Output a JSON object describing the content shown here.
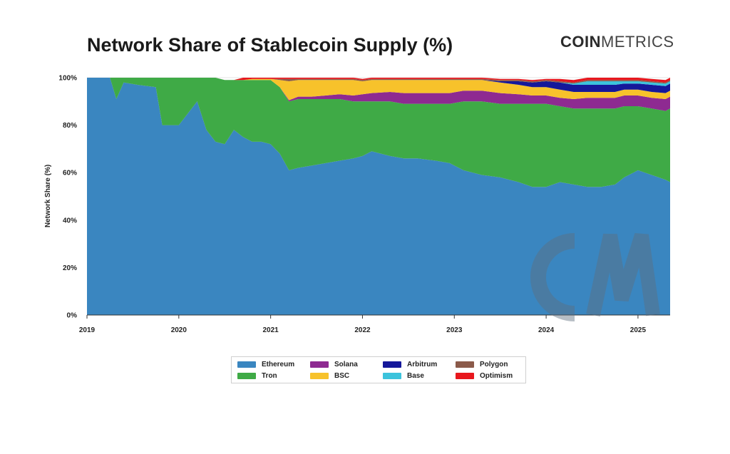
{
  "header": {
    "title": "Network Share of Stablecoin Supply (%)",
    "brand_bold": "COIN",
    "brand_light": "METRICS"
  },
  "chart_data": {
    "type": "area",
    "stacked": true,
    "title": "Network Share of Stablecoin Supply (%)",
    "xlabel": "",
    "ylabel": "Network Share (%)",
    "ylim": [
      0,
      100
    ],
    "xlim": [
      2019.0,
      2025.35
    ],
    "y_ticks": [
      "0%",
      "20%",
      "40%",
      "60%",
      "80%",
      "100%"
    ],
    "x_ticks": [
      "2019",
      "2020",
      "2021",
      "2022",
      "2023",
      "2024",
      "2025"
    ],
    "grid": true,
    "legend_position": "bottom",
    "x": [
      2019.0,
      2019.25,
      2019.32,
      2019.4,
      2019.55,
      2019.75,
      2019.82,
      2020.0,
      2020.1,
      2020.2,
      2020.3,
      2020.4,
      2020.5,
      2020.6,
      2020.7,
      2020.8,
      2020.9,
      2021.0,
      2021.1,
      2021.2,
      2021.3,
      2021.45,
      2021.6,
      2021.75,
      2021.9,
      2022.0,
      2022.1,
      2022.3,
      2022.45,
      2022.6,
      2022.8,
      2022.95,
      2023.1,
      2023.3,
      2023.5,
      2023.7,
      2023.85,
      2024.0,
      2024.15,
      2024.3,
      2024.45,
      2024.6,
      2024.75,
      2024.85,
      2025.0,
      2025.15,
      2025.3,
      2025.35
    ],
    "series": [
      {
        "name": "Ethereum",
        "color": "#3a86c0",
        "values": [
          100,
          100,
          91,
          98,
          97,
          96,
          80,
          80,
          85,
          90,
          78,
          73,
          72,
          78,
          75,
          73,
          73,
          72,
          68,
          61,
          62,
          63,
          64,
          65,
          66,
          67,
          69,
          67,
          66,
          66,
          65,
          64,
          61,
          59,
          58,
          56,
          54,
          54,
          56,
          55,
          54,
          54,
          55,
          58,
          61,
          59,
          57,
          56
        ]
      },
      {
        "name": "Tron",
        "color": "#3faa46",
        "values": [
          0,
          0,
          9,
          2,
          3,
          4,
          20,
          20,
          15,
          10,
          22,
          27,
          27,
          21,
          24,
          26,
          26,
          27,
          28,
          29,
          29,
          28,
          27,
          26,
          24,
          23,
          21,
          23,
          23,
          23,
          24,
          25,
          29,
          31,
          31,
          33,
          35,
          35,
          32,
          32,
          33,
          33,
          32,
          30,
          27,
          28,
          29,
          31
        ]
      },
      {
        "name": "Solana",
        "color": "#8e2a91",
        "values": [
          0,
          0,
          0,
          0,
          0,
          0,
          0,
          0,
          0,
          0,
          0,
          0,
          0,
          0,
          0,
          0,
          0,
          0,
          0,
          0.5,
          1,
          1,
          1.5,
          2,
          2.5,
          3,
          3.5,
          4,
          4.5,
          4.5,
          4.5,
          4.5,
          4.5,
          4.5,
          4.5,
          4,
          3.5,
          3.5,
          3.5,
          4,
          4.5,
          4.5,
          4.5,
          4.5,
          4.5,
          4.5,
          5,
          5
        ]
      },
      {
        "name": "BSC",
        "color": "#f7c22b",
        "values": [
          0,
          0,
          0,
          0,
          0,
          0,
          0,
          0,
          0,
          0,
          0,
          0,
          0,
          0,
          0,
          0.5,
          0.5,
          0.5,
          3,
          8,
          7,
          7,
          6.5,
          6,
          6.5,
          5.5,
          5.5,
          5,
          5.5,
          5.5,
          5.5,
          5.5,
          4.5,
          4.5,
          4.5,
          4,
          3.5,
          3.5,
          3.5,
          3,
          2.5,
          2.5,
          2.5,
          2.5,
          2.5,
          2.5,
          2.5,
          2.5
        ]
      },
      {
        "name": "Arbitrum",
        "color": "#15189a",
        "values": [
          0,
          0,
          0,
          0,
          0,
          0,
          0,
          0,
          0,
          0,
          0,
          0,
          0,
          0,
          0,
          0,
          0,
          0,
          0,
          0,
          0,
          0,
          0,
          0,
          0,
          0,
          0,
          0,
          0,
          0,
          0,
          0,
          0,
          0,
          0.5,
          1.5,
          2,
          2.5,
          3,
          3,
          3,
          3,
          3,
          2.5,
          2.5,
          3,
          3,
          3
        ]
      },
      {
        "name": "Base",
        "color": "#3cc3dc",
        "values": [
          0,
          0,
          0,
          0,
          0,
          0,
          0,
          0,
          0,
          0,
          0,
          0,
          0,
          0,
          0,
          0,
          0,
          0,
          0,
          0,
          0,
          0,
          0,
          0,
          0,
          0,
          0,
          0,
          0,
          0,
          0,
          0,
          0,
          0,
          0,
          0,
          0,
          0,
          0,
          0.5,
          1.5,
          1.5,
          1.5,
          1,
          1,
          1,
          1,
          1
        ]
      },
      {
        "name": "Polygon",
        "color": "#8b5a4a",
        "values": [
          0,
          0,
          0,
          0,
          0,
          0,
          0,
          0,
          0,
          0,
          0,
          0,
          0,
          0,
          0,
          0,
          0,
          0,
          0.5,
          1,
          0.5,
          0.5,
          0.5,
          0.5,
          0.5,
          0.5,
          0.5,
          0.5,
          0.5,
          0.5,
          0.5,
          0.5,
          0.5,
          0.5,
          0.5,
          0.5,
          0.5,
          0.5,
          0.5,
          0.5,
          0.5,
          0.5,
          0.5,
          0.5,
          0.5,
          0.5,
          0.5,
          0.5
        ]
      },
      {
        "name": "Optimism",
        "color": "#e8171d",
        "values": [
          0,
          0,
          0,
          0,
          0,
          0,
          0,
          0,
          0,
          0,
          0,
          0,
          0,
          0,
          1,
          0.5,
          0.5,
          0.5,
          0.5,
          0.5,
          0.5,
          0.5,
          0.5,
          0.5,
          0.5,
          0.5,
          0.5,
          0.5,
          0.5,
          0.5,
          0.5,
          0.5,
          0.5,
          0.5,
          0.5,
          0.5,
          0.5,
          0.5,
          1,
          1,
          1,
          1,
          1,
          1,
          1,
          1,
          1,
          1
        ]
      }
    ]
  },
  "legend": {
    "items": [
      {
        "label": "Ethereum",
        "color": "#3a86c0"
      },
      {
        "label": "Tron",
        "color": "#3faa46"
      },
      {
        "label": "Solana",
        "color": "#8e2a91"
      },
      {
        "label": "BSC",
        "color": "#f7c22b"
      },
      {
        "label": "Arbitrum",
        "color": "#15189a"
      },
      {
        "label": "Base",
        "color": "#3cc3dc"
      },
      {
        "label": "Polygon",
        "color": "#8b5a4a"
      },
      {
        "label": "Optimism",
        "color": "#e8171d"
      }
    ]
  }
}
